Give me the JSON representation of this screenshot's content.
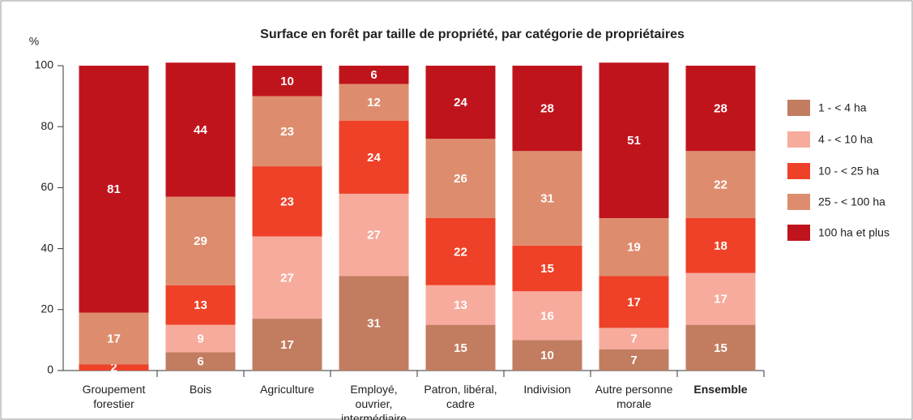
{
  "chart_data": {
    "type": "stacked_bar",
    "title": "Surface en forêt par taille de propriété, par catégorie de propriétaires",
    "y_axis_label": "%",
    "categories": [
      "Groupement forestier",
      "Bois",
      "Agriculture",
      "Employé, ouvrier, intermédiaire",
      "Patron, libéral, cadre",
      "Indivision",
      "Autre personne morale",
      "Ensemble"
    ],
    "series": [
      {
        "name": "1 - < 4 ha",
        "color": "#c27c60",
        "values": [
          0,
          6,
          17,
          31,
          15,
          10,
          7,
          15
        ]
      },
      {
        "name": "4 - < 10 ha",
        "color": "#f7ab9c",
        "values": [
          0,
          9,
          27,
          27,
          13,
          16,
          7,
          17
        ]
      },
      {
        "name": "10 - < 25 ha",
        "color": "#ee4128",
        "values": [
          2,
          13,
          23,
          24,
          22,
          15,
          17,
          18
        ]
      },
      {
        "name": "25 - < 100 ha",
        "color": "#dd8d6e",
        "values": [
          17,
          29,
          23,
          12,
          26,
          31,
          19,
          22
        ]
      },
      {
        "name": "100 ha et plus",
        "color": "#c0141d",
        "values": [
          81,
          44,
          10,
          6,
          24,
          28,
          51,
          28
        ]
      }
    ],
    "ylim": [
      0,
      100
    ],
    "yticks": [
      0,
      20,
      40,
      60,
      80,
      100
    ],
    "legend": "right"
  }
}
